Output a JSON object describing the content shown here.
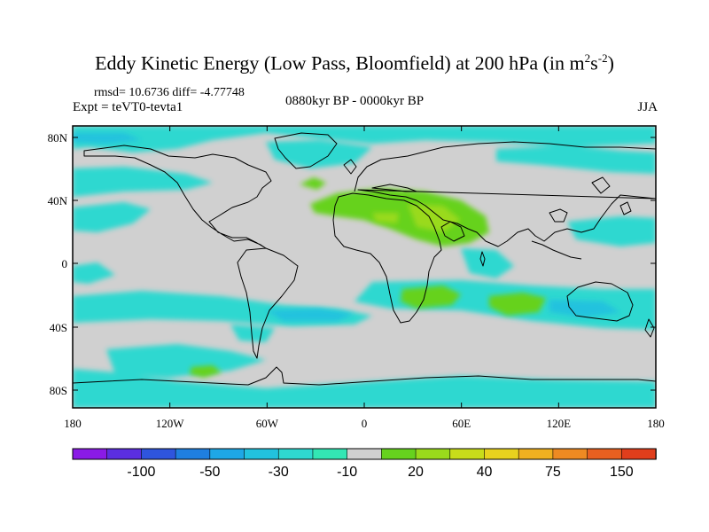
{
  "title": {
    "main": "Eddy Kinetic Energy (Low Pass, Bloomfield) at 200 hPa (in m",
    "exp1": "2",
    "mid": "s",
    "exp2": "-2",
    "end": ")"
  },
  "stats": "rmsd= 10.6736 diff= -4.77748",
  "experiment": "Expt = teVT0-tevta1",
  "period": "0880kyr BP - 0000kyr BP",
  "season": "JJA",
  "map": {
    "lat_ticks": [
      "80N",
      "40N",
      "0",
      "40S",
      "80S"
    ],
    "lon_ticks": [
      "180",
      "120W",
      "60W",
      "0",
      "60E",
      "120E",
      "180"
    ]
  },
  "colorbar": {
    "colors": [
      "#8a1ae6",
      "#5b2ee0",
      "#2f55dd",
      "#1f7fe0",
      "#1ea7e6",
      "#22c2de",
      "#2fd8d0",
      "#33e6b4",
      "#d0d0d0",
      "#66d21e",
      "#9ada1c",
      "#c8dc1a",
      "#e8d21e",
      "#f0b020",
      "#ee8a22",
      "#e86020",
      "#e03e1c"
    ],
    "labels": [
      "-100",
      "-50",
      "-30",
      "-10",
      "20",
      "40",
      "75",
      "150"
    ]
  },
  "fields": {
    "gray": "#d0d0d0",
    "cyan": "#2fd8d0",
    "cyan_dark": "#22c2de",
    "blue": "#1ea7e6",
    "green": "#66d21e",
    "green_light": "#9ada1c",
    "yellow": "#c8dc1a"
  }
}
